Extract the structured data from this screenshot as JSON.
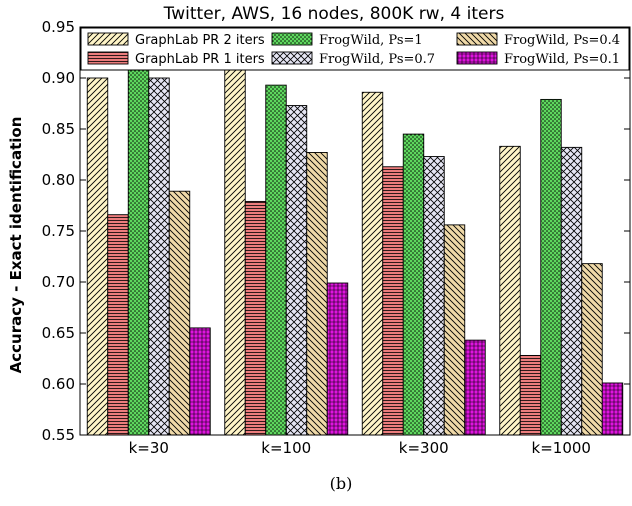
{
  "chart_data": {
    "type": "bar",
    "title": "Twitter, AWS, 16 nodes, 800K rw, 4 iters",
    "xlabel": "",
    "ylabel": "Accuracy - Exact identification",
    "caption": "(b)",
    "categories": [
      "k=30",
      "k=100",
      "k=300",
      "k=1000"
    ],
    "ylim": [
      0.55,
      0.95
    ],
    "yticks": [
      "0.55",
      "0.60",
      "0.65",
      "0.70",
      "0.75",
      "0.80",
      "0.85",
      "0.90",
      "0.95"
    ],
    "legend_position": "top",
    "grid": false,
    "series": [
      {
        "name": "GraphLab PR 2 iters",
        "values": [
          0.9,
          0.92,
          0.886,
          0.833
        ],
        "color": "#fff5c8",
        "pattern": "diagonal-stripes"
      },
      {
        "name": "GraphLab PR 1 iters",
        "values": [
          0.766,
          0.779,
          0.813,
          0.628
        ],
        "color": "#ec7d7d",
        "pattern": "horizontal-stripes"
      },
      {
        "name": "FrogWild, Ps=1",
        "values": [
          0.933,
          0.893,
          0.845,
          0.879
        ],
        "color": "#5ed85e",
        "pattern": "dots"
      },
      {
        "name": "FrogWild, Ps=0.7",
        "values": [
          0.9,
          0.873,
          0.823,
          0.832
        ],
        "color": "#e6e6f4",
        "pattern": "crosshatch"
      },
      {
        "name": "FrogWild, Ps=0.4",
        "values": [
          0.789,
          0.827,
          0.756,
          0.718
        ],
        "color": "#efd9a8",
        "pattern": "back-diagonal-stripes"
      },
      {
        "name": "FrogWild, Ps=0.1",
        "values": [
          0.655,
          0.699,
          0.643,
          0.601
        ],
        "color": "#e014e0",
        "pattern": "grid"
      }
    ]
  }
}
